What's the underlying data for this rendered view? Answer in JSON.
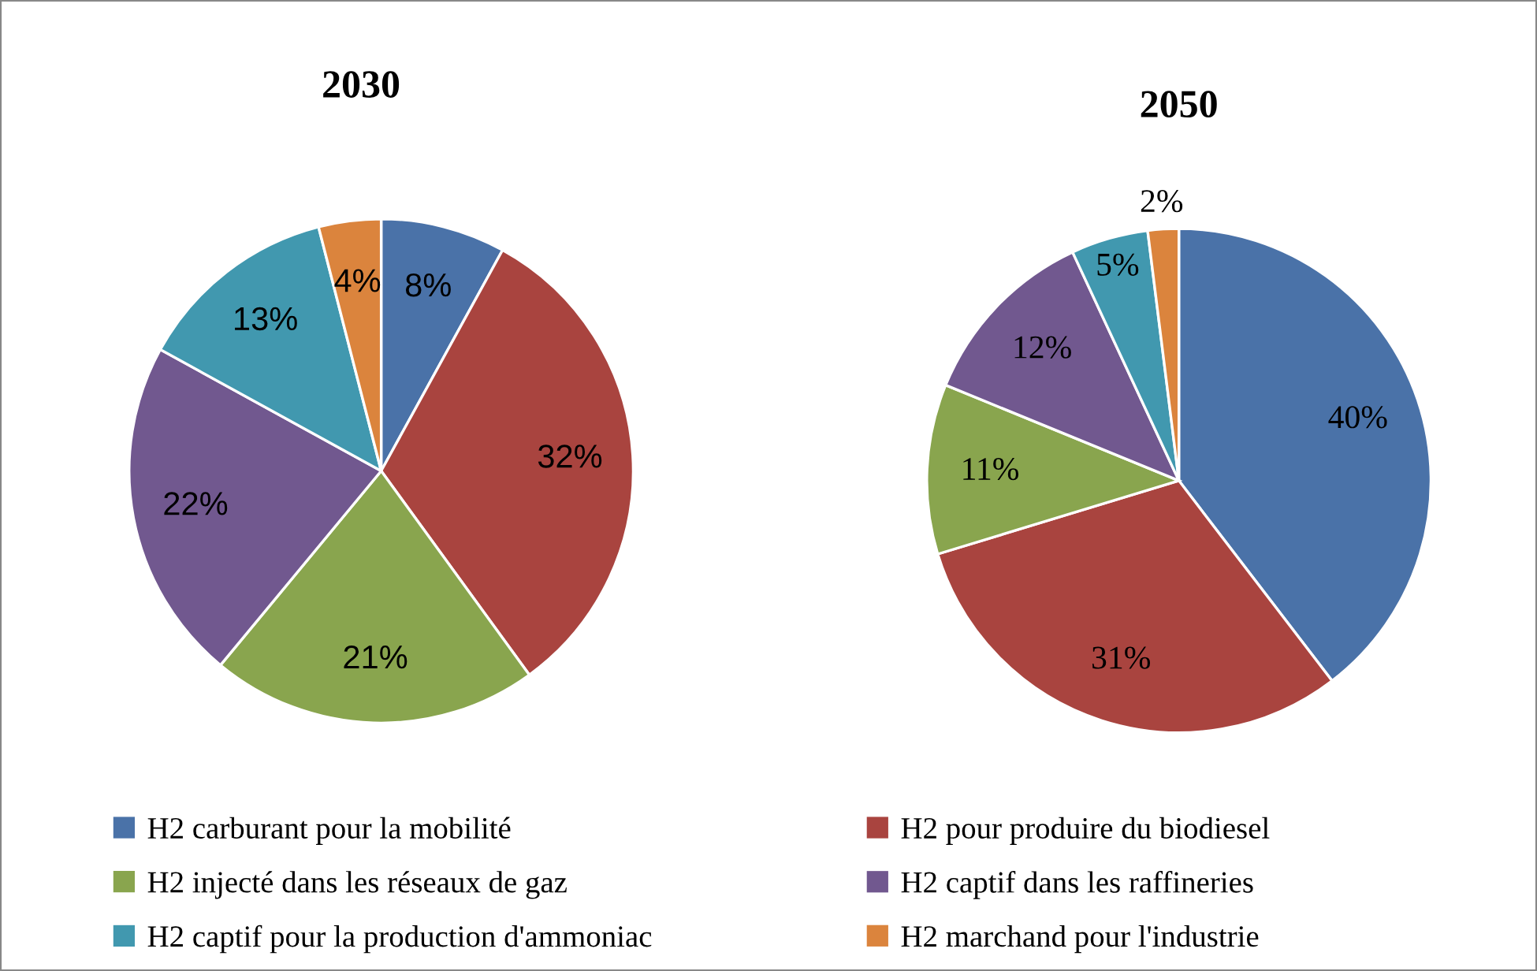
{
  "chart_data": [
    {
      "type": "pie",
      "title": "2030",
      "categories": [
        "H2 carburant pour la mobilité",
        "H2 pour produire du biodiesel",
        "H2 injecté dans les réseaux de gaz",
        "H2 captif dans les raffineries",
        "H2 captif pour la production d'ammoniac",
        "H2 marchand pour l'industrie"
      ],
      "values": [
        8,
        32,
        21,
        22,
        13,
        4
      ],
      "value_labels": [
        "8%",
        "32%",
        "21%",
        "22%",
        "13%",
        "4%"
      ],
      "colors": [
        "#4a72a8",
        "#a9443f",
        "#89a54e",
        "#71588f",
        "#4198af",
        "#db843d"
      ],
      "legend": "bottom"
    },
    {
      "type": "pie",
      "title": "2050",
      "categories": [
        null,
        null,
        null,
        null,
        null,
        null
      ],
      "values": [
        40,
        31,
        11,
        12,
        5,
        2
      ],
      "value_labels": [
        "40%",
        "31%",
        "11%",
        "12%",
        "5%",
        "2%"
      ],
      "colors": [
        "#4a72a8",
        "#a9443f",
        "#89a54e",
        "#71588f",
        "#4198af",
        "#db843d"
      ]
    }
  ]
}
